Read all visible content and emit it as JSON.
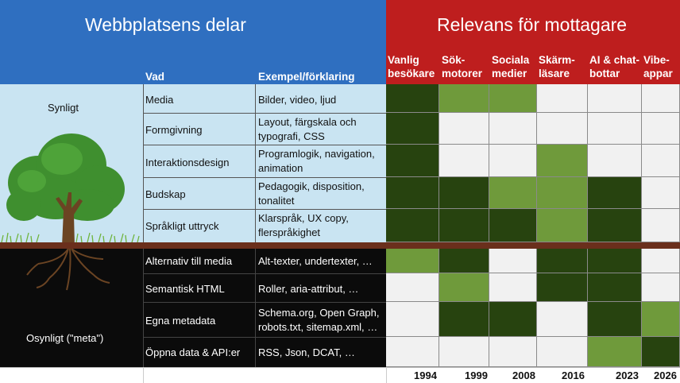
{
  "header": {
    "left_title": "Webbplatsens delar",
    "right_title": "Relevans för mottagare",
    "col_vad": "Vad",
    "col_exempel": "Exempel/förklaring",
    "audiences": [
      {
        "line1": "Vanlig",
        "line2": "besökare",
        "year": "1994"
      },
      {
        "line1": "Sök-",
        "line2": "motorer",
        "year": "1999"
      },
      {
        "line1": "Sociala",
        "line2": "medier",
        "year": "2008"
      },
      {
        "line1": "Skärm-",
        "line2": "läsare",
        "year": "2016"
      },
      {
        "line1": "AI & chat-",
        "line2": "bottar",
        "year": "2023"
      },
      {
        "line1": "Vibe-",
        "line2": "appar",
        "year": "2026"
      }
    ]
  },
  "sections": {
    "visible": "Synligt",
    "invisible": "Osynligt (\"meta\")"
  },
  "rows": [
    {
      "vad": "Media",
      "ex1": "Bilder, video, ljud",
      "ex2": ""
    },
    {
      "vad": "Formgivning",
      "ex1": "Layout, färgskala och",
      "ex2": "typografi, CSS"
    },
    {
      "vad": "Interaktionsdesign",
      "ex1": "Programlogik, navigation,",
      "ex2": "animation"
    },
    {
      "vad": "Budskap",
      "ex1": "Pedagogik, disposition,",
      "ex2": "tonalitet"
    },
    {
      "vad": "Språkligt uttryck",
      "ex1": "Klarspråk, UX copy,",
      "ex2": "flerspråkighet"
    },
    {
      "vad": "Alternativ till media",
      "ex1": "Alt-texter, undertexter, …",
      "ex2": ""
    },
    {
      "vad": "Semantisk HTML",
      "ex1": "Roller, aria-attribut, …",
      "ex2": ""
    },
    {
      "vad": "Egna metadata",
      "ex1": "Schema.org, Open Graph,",
      "ex2": "robots.txt, sitemap.xml, …"
    },
    {
      "vad": "Öppna data & API:er",
      "ex1": "RSS, Json, DCAT, …",
      "ex2": ""
    }
  ],
  "relevance_legend": {
    "high": "#27430f",
    "medium": "#6f9a3b",
    "none": "#f1f1f1"
  },
  "relevance_matrix": [
    [
      "high",
      "medium",
      "medium",
      "none",
      "none",
      "none"
    ],
    [
      "high",
      "none",
      "none",
      "none",
      "none",
      "none"
    ],
    [
      "high",
      "none",
      "none",
      "medium",
      "none",
      "none"
    ],
    [
      "high",
      "high",
      "medium",
      "medium",
      "high",
      "none"
    ],
    [
      "high",
      "high",
      "high",
      "medium",
      "high",
      "none"
    ],
    [
      "medium",
      "high",
      "none",
      "high",
      "high",
      "none"
    ],
    [
      "none",
      "medium",
      "none",
      "high",
      "high",
      "none"
    ],
    [
      "none",
      "high",
      "high",
      "none",
      "high",
      "medium"
    ],
    [
      "none",
      "none",
      "none",
      "none",
      "medium",
      "high"
    ]
  ]
}
